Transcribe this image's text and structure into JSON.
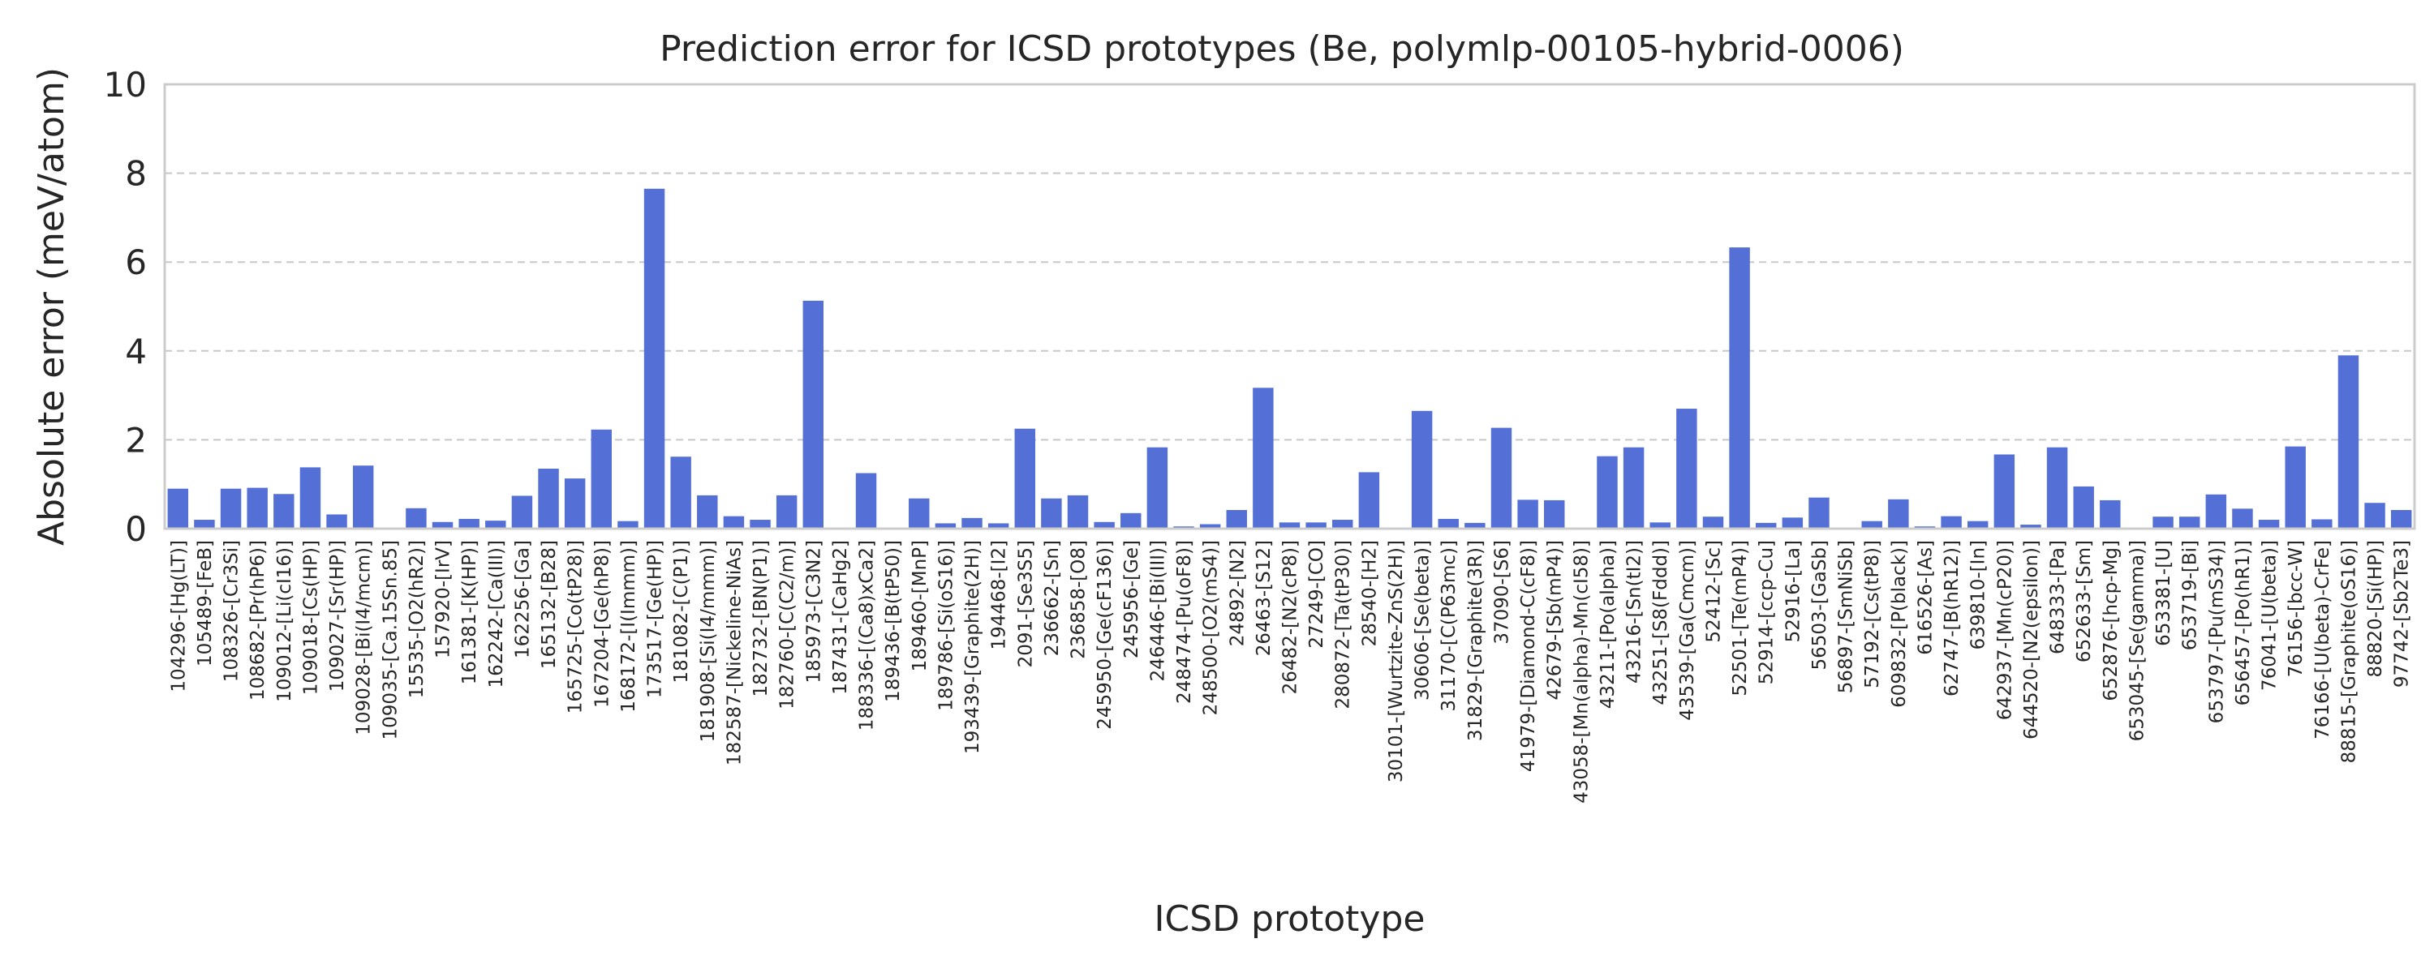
{
  "chart_data": {
    "type": "bar",
    "title": "Prediction error for ICSD prototypes (Be, polymlp-00105-hybrid-0006)",
    "xlabel": "ICSD prototype",
    "ylabel": "Absolute error (meV/atom)",
    "ylim": [
      0,
      10
    ],
    "yticks": [
      "0",
      "2",
      "4",
      "6",
      "8",
      "10"
    ],
    "grid": "horizontal dashed",
    "bar_color": "#5470d6",
    "categories": [
      "104296-[Hg(LT)]",
      "105489-[FeB]",
      "108326-[Cr3Si]",
      "108682-[Pr(hP6)]",
      "109012-[Li(cI16)]",
      "109018-[Cs(HP)]",
      "109027-[Sr(HP)]",
      "109028-[Bi(I4/mcm)]",
      "109035-[Ca.15Sn.85]",
      "15535-[O2(hR2)]",
      "157920-[IrV]",
      "161381-[K(HP)]",
      "162242-[Ca(III)]",
      "162256-[Ga]",
      "165132-[B28]",
      "165725-[Co(tP28)]",
      "167204-[Ge(hP8)]",
      "168172-[I(Immm)]",
      "173517-[Ge(HP)]",
      "181082-[C(P1)]",
      "181908-[Si(I4/mmm)]",
      "182587-[Nickeline-NiAs]",
      "182732-[BN(P1)]",
      "182760-[C(C2/m)]",
      "185973-[C3N2]",
      "187431-[CaHg2]",
      "188336-[(Ca8)xCa2]",
      "189436-[B(tP50)]",
      "189460-[MnP]",
      "189786-[Si(oS16)]",
      "193439-[Graphite(2H)]",
      "194468-[I2]",
      "2091-[Se3S5]",
      "236662-[Sn]",
      "236858-[O8]",
      "245950-[Ge(cF136)]",
      "245956-[Ge]",
      "246446-[Bi(III)]",
      "248474-[Pu(oF8)]",
      "248500-[O2(mS4)]",
      "24892-[N2]",
      "26463-[S12]",
      "26482-[N2(cP8)]",
      "27249-[CO]",
      "280872-[Ta(tP30)]",
      "28540-[H2]",
      "30101-[Wurtzite-ZnS(2H)]",
      "30606-[Se(beta)]",
      "31170-[C(P63mc)]",
      "31829-[Graphite(3R)]",
      "37090-[S6]",
      "41979-[Diamond-C(cF8)]",
      "42679-[Sb(mP4)]",
      "43058-[Mn(alpha)-Mn(cI58)]",
      "43211-[Po(alpha)]",
      "43216-[Sn(tI2)]",
      "43251-[S8(Fddd)]",
      "43539-[Ga(Cmcm)]",
      "52412-[Sc]",
      "52501-[Te(mP4)]",
      "52914-[ccp-Cu]",
      "52916-[La]",
      "56503-[GaSb]",
      "56897-[SmNiSb]",
      "57192-[Cs(tP8)]",
      "609832-[P(black)]",
      "616526-[As]",
      "62747-[B(hR12)]",
      "639810-[In]",
      "642937-[Mn(cP20)]",
      "644520-[N2(epsilon)]",
      "648333-[Pa]",
      "652633-[Sm]",
      "652876-[hcp-Mg]",
      "653045-[Se(gamma)]",
      "653381-[U]",
      "653719-[Bi]",
      "653797-[Pu(mS34)]",
      "656457-[Po(hR1)]",
      "76041-[U(beta)]",
      "76156-[bcc-W]",
      "76166-[U(beta)-CrFe]",
      "88815-[Graphite(oS16)]",
      "88820-[Si(HP)]",
      "97742-[Sb2Te3]"
    ],
    "values": [
      0.9,
      0.2,
      0.9,
      0.92,
      0.78,
      1.38,
      0.32,
      1.42,
      0.0,
      0.46,
      0.15,
      0.22,
      0.18,
      0.74,
      1.35,
      1.13,
      2.23,
      0.17,
      7.65,
      1.62,
      0.75,
      0.28,
      0.2,
      0.75,
      5.13,
      0.0,
      1.25,
      0.0,
      0.68,
      0.12,
      0.24,
      0.12,
      2.25,
      0.68,
      0.75,
      0.15,
      0.35,
      1.83,
      0.05,
      0.1,
      0.42,
      3.17,
      0.14,
      0.14,
      0.2,
      1.27,
      0.0,
      2.65,
      0.22,
      0.13,
      2.27,
      0.65,
      0.64,
      0.0,
      1.63,
      1.83,
      0.14,
      2.7,
      0.27,
      6.33,
      0.13,
      0.25,
      0.7,
      0.0,
      0.17,
      0.66,
      0.05,
      0.28,
      0.17,
      1.67,
      0.09,
      1.83,
      0.95,
      0.64,
      0.0,
      0.27,
      0.27,
      0.77,
      0.45,
      0.2,
      1.85,
      0.21,
      3.9,
      0.58,
      0.42
    ]
  }
}
